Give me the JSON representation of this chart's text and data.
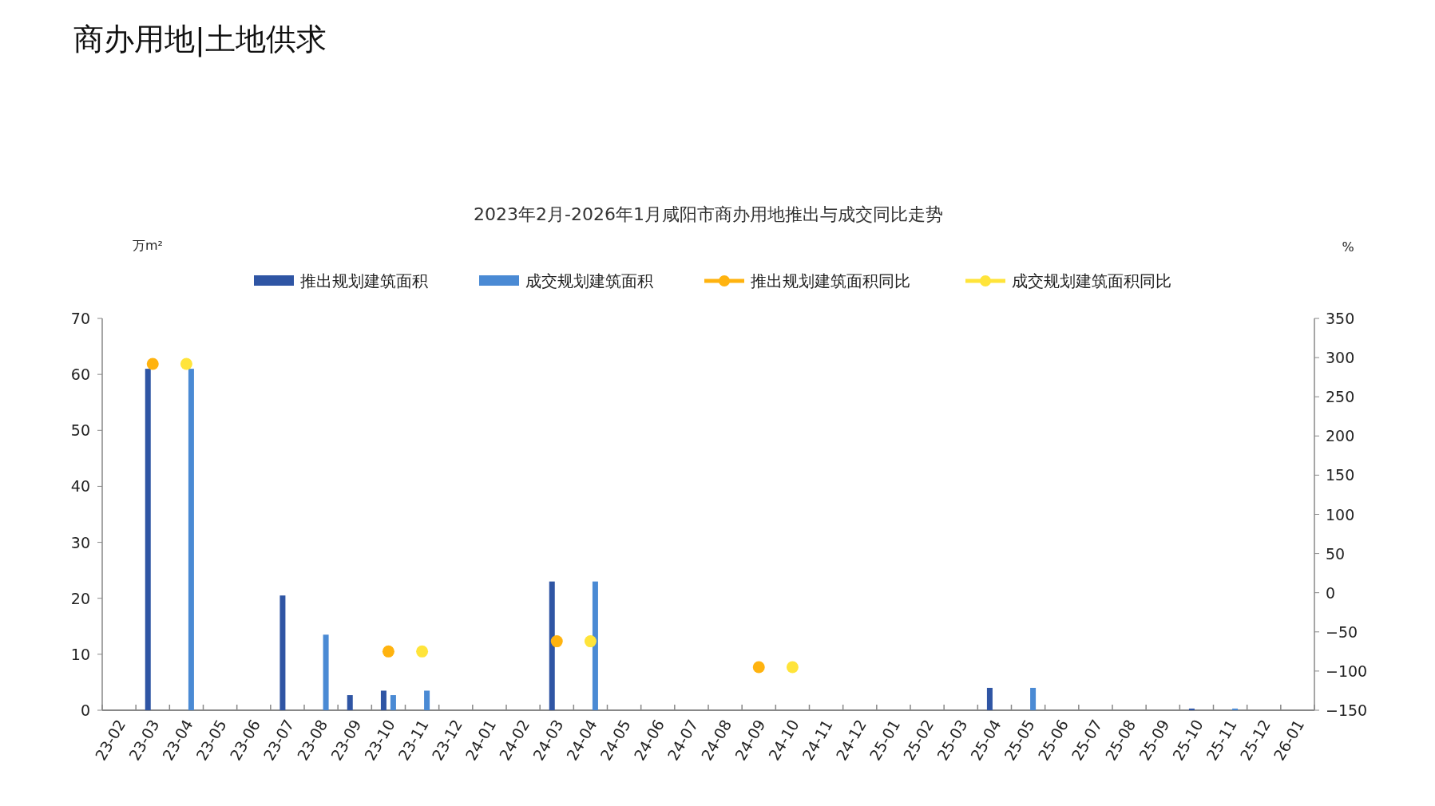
{
  "chart_data": {
    "type": "bar",
    "title": "商办用地|土地供求",
    "subtitle": "2023年2月-2026年1月咸阳市商办用地推出与成交同比走势",
    "ylabel": "万m²",
    "y2label": "%",
    "categories": [
      "23-02",
      "23-03",
      "23-04",
      "23-05",
      "23-06",
      "23-07",
      "23-08",
      "23-09",
      "23-10",
      "23-11",
      "23-12",
      "24-01",
      "24-02",
      "24-03",
      "24-04",
      "24-05",
      "24-06",
      "24-07",
      "24-08",
      "24-09",
      "24-10",
      "24-11",
      "24-12",
      "25-01",
      "25-02",
      "25-03",
      "25-04",
      "25-05",
      "25-06",
      "25-07",
      "25-08",
      "25-09",
      "25-10",
      "25-11",
      "25-12",
      "26-01"
    ],
    "series": [
      {
        "name": "推出规划建筑面积",
        "color": "#2f55a4",
        "values": [
          null,
          61,
          null,
          null,
          null,
          20.5,
          null,
          2.7,
          3.5,
          null,
          null,
          null,
          null,
          23,
          null,
          null,
          null,
          null,
          null,
          null,
          null,
          null,
          null,
          null,
          null,
          null,
          4,
          null,
          null,
          null,
          null,
          null,
          0.3,
          null,
          null,
          null
        ]
      },
      {
        "name": "成交规划建筑面积",
        "color": "#4a8ad4",
        "values": [
          null,
          null,
          61,
          null,
          null,
          null,
          13.5,
          null,
          2.7,
          3.5,
          null,
          null,
          null,
          null,
          23,
          null,
          null,
          null,
          null,
          null,
          null,
          null,
          null,
          null,
          null,
          null,
          null,
          4,
          null,
          null,
          null,
          null,
          null,
          0.3,
          null,
          null
        ]
      },
      {
        "name": "推出规划建筑面积同比",
        "type": "scatter",
        "axis": "y2",
        "color": "#ffb30f",
        "values": [
          null,
          292,
          null,
          null,
          null,
          null,
          null,
          null,
          -75,
          null,
          null,
          null,
          null,
          -62,
          null,
          null,
          null,
          null,
          null,
          -95,
          null,
          null,
          null,
          null,
          null,
          null,
          null,
          null,
          null,
          null,
          null,
          null,
          null,
          null,
          null,
          null
        ]
      },
      {
        "name": "成交规划建筑面积同比",
        "type": "scatter",
        "axis": "y2",
        "color": "#ffe43a",
        "values": [
          null,
          null,
          292,
          null,
          null,
          null,
          null,
          null,
          null,
          -75,
          null,
          null,
          null,
          null,
          -62,
          null,
          null,
          null,
          null,
          null,
          -95,
          null,
          null,
          null,
          null,
          null,
          null,
          null,
          null,
          null,
          null,
          null,
          null,
          null,
          null,
          null
        ]
      }
    ],
    "ylim": [
      0,
      70
    ],
    "yticks": [
      0,
      10,
      20,
      30,
      40,
      50,
      60,
      70
    ],
    "y2lim": [
      -150,
      350
    ],
    "y2ticks": [
      -150,
      -100,
      -50,
      0,
      50,
      100,
      150,
      200,
      250,
      300,
      350
    ],
    "marker": "circle",
    "legend": "top",
    "grid": false
  }
}
